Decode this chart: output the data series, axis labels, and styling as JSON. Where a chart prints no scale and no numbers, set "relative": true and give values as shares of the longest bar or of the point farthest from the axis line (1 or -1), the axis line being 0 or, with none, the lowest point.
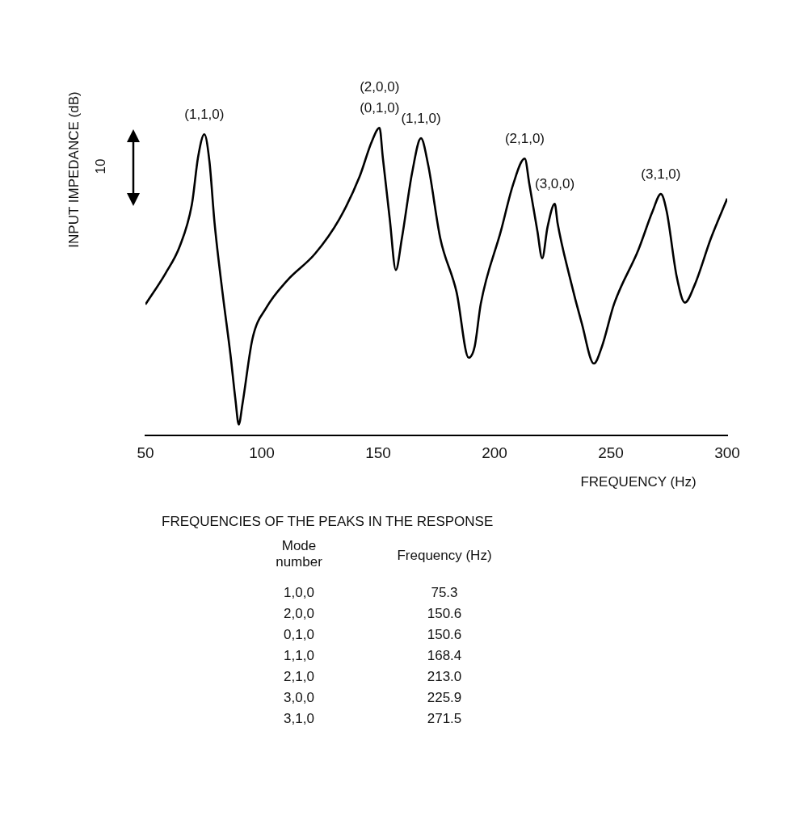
{
  "chart_data": {
    "type": "line",
    "relative": true,
    "xlabel": "FREQUENCY (Hz)",
    "ylabel": "INPUT IMPEDANCE (dB)",
    "xlim": [
      50,
      300
    ],
    "xticks": [
      50,
      100,
      150,
      200,
      250,
      300
    ],
    "grid": false,
    "legend": false,
    "marker": "none",
    "line_style": "solid",
    "color": "#000000",
    "x": [
      50,
      58.7,
      64.8,
      70,
      72.6,
      75.3,
      77.5,
      79.7,
      83.1,
      86.5,
      88.7,
      90.1,
      91.7,
      96,
      102,
      110.8,
      122.9,
      133.3,
      142,
      147.2,
      150.6,
      152,
      155,
      157.6,
      160.2,
      164.6,
      168.4,
      171.5,
      176.7,
      183.7,
      188.9,
      191.5,
      194.1,
      202.8,
      208,
      213,
      215,
      218.4,
      220.5,
      222.8,
      225.9,
      227.1,
      232.3,
      237.5,
      242.7,
      246.2,
      251.4,
      261.8,
      267.9,
      271.5,
      274,
      278.3,
      281.8,
      286.1,
      293,
      300
    ],
    "values": [
      0.426,
      0.528,
      0.616,
      0.753,
      0.904,
      0.979,
      0.891,
      0.691,
      0.466,
      0.265,
      0.115,
      0.036,
      0.103,
      0.315,
      0.416,
      0.503,
      0.591,
      0.703,
      0.841,
      0.954,
      1,
      0.904,
      0.703,
      0.538,
      0.641,
      0.854,
      0.966,
      0.879,
      0.641,
      0.466,
      0.253,
      0.29,
      0.428,
      0.666,
      0.816,
      0.9,
      0.816,
      0.666,
      0.576,
      0.678,
      0.753,
      0.691,
      0.516,
      0.365,
      0.234,
      0.29,
      0.428,
      0.603,
      0.728,
      0.785,
      0.728,
      0.516,
      0.432,
      0.491,
      0.641,
      0.77
    ],
    "annotations": [
      {
        "text": "(1,1,0)",
        "x": 75.3,
        "y": 0.979
      },
      {
        "text": "(2,0,0)",
        "x": 150.6,
        "y": 1
      },
      {
        "text": "(0,1,0)",
        "x": 150.6,
        "y": 1
      },
      {
        "text": "(1,1,0)",
        "x": 168.4,
        "y": 0.966
      },
      {
        "text": "(2,1,0)",
        "x": 213,
        "y": 0.9
      },
      {
        "text": "(3,0,0)",
        "x": 225.9,
        "y": 0.753
      },
      {
        "text": "(3,1,0)",
        "x": 271.5,
        "y": 0.785
      },
      "10",
      "FREQUENCIES OF THE PEAKS IN THE RESPONSE",
      "Mode number",
      "Frequency  (Hz)",
      "1,0,0",
      "75.3",
      "2,0,0",
      "150.6",
      "0,1,0",
      "150.6",
      "1,1,0",
      "168.4",
      "2,1,0",
      "213.0",
      "3,0,0",
      "225.9",
      "3,1,0",
      "271.5"
    ]
  }
}
